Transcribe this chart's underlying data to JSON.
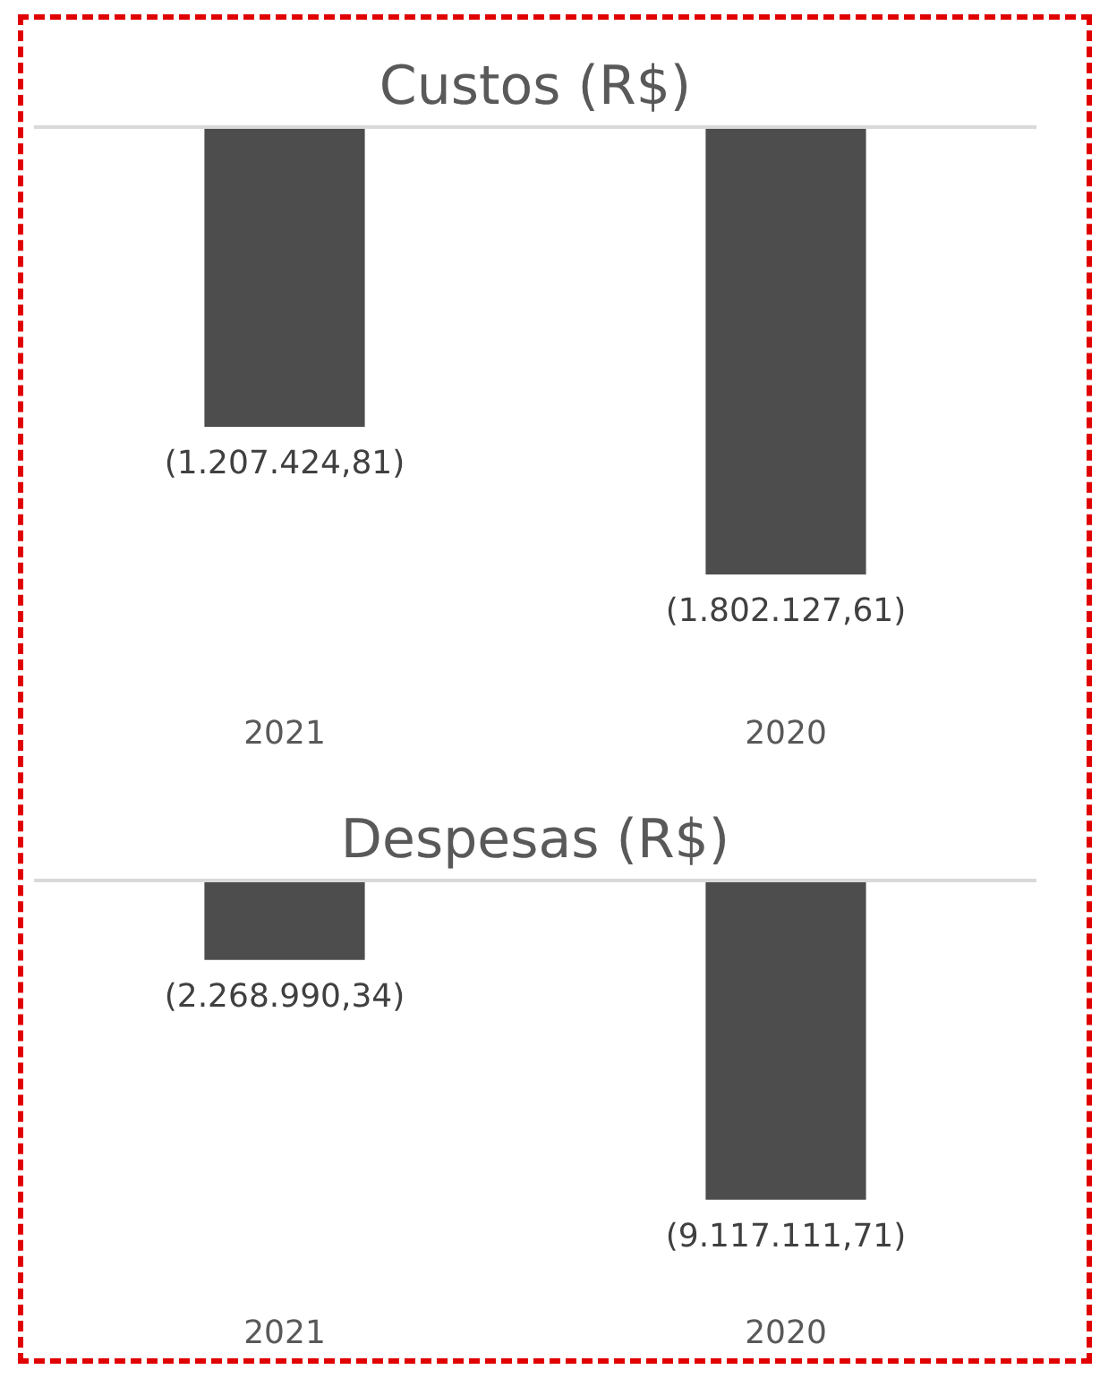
{
  "chart_data": [
    {
      "type": "bar",
      "title": "Custos (R$)",
      "categories": [
        "2021",
        "2020"
      ],
      "values": [
        -1207424.81,
        -1802127.61
      ],
      "color": "#4d4d4d",
      "value_labels": [
        "(1.207.424,81)",
        "(1.802.127,61)"
      ],
      "tick_labels": "x",
      "grid": false
    },
    {
      "type": "bar",
      "title": "Despesas (R$)",
      "categories": [
        "2021",
        "2020"
      ],
      "values": [
        -2268990.34,
        -9117111.71
      ],
      "color": "#4d4d4d",
      "value_labels": [
        "(2.268.990,34)",
        "(9.117.111,71)"
      ],
      "tick_labels": "x",
      "grid": false
    }
  ]
}
